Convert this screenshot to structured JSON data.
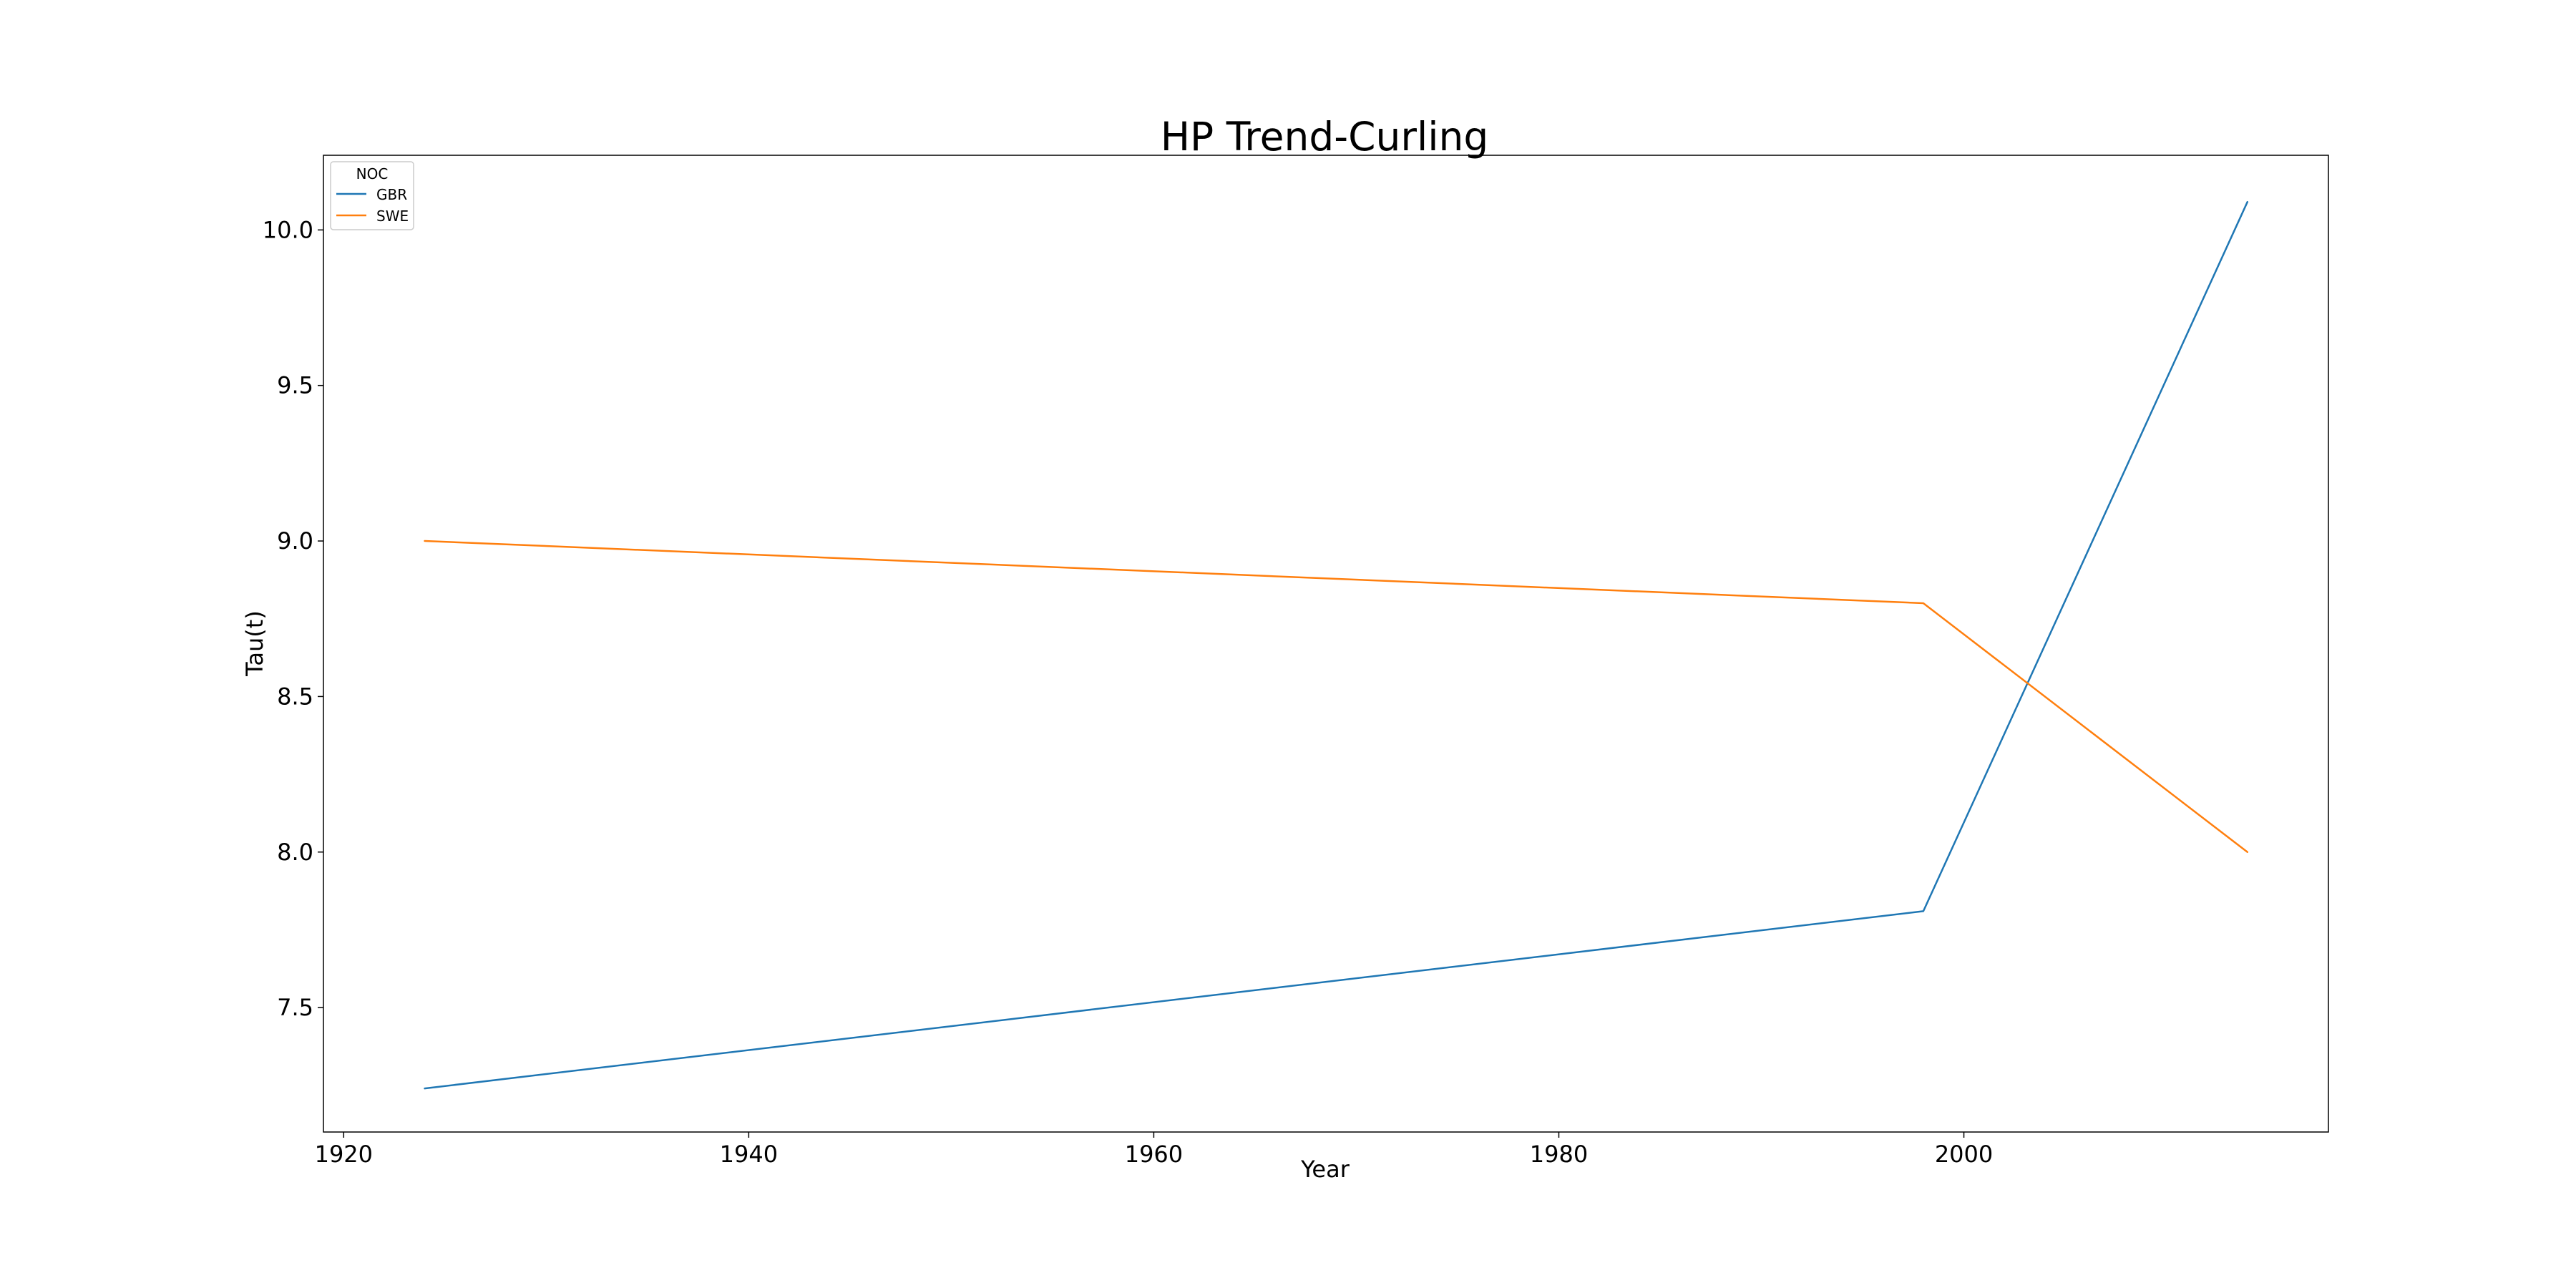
{
  "chart_data": {
    "type": "line",
    "title": "HP Trend-Curling",
    "xlabel": "Year",
    "ylabel": "Tau(t)",
    "xlim": [
      1919,
      2018
    ],
    "ylim": [
      7.1,
      10.24
    ],
    "xticks": [
      1920,
      1940,
      1960,
      1980,
      2000
    ],
    "yticks": [
      7.5,
      8.0,
      8.5,
      9.0,
      9.5,
      10.0
    ],
    "xtick_labels": [
      "1920",
      "1940",
      "1960",
      "1980",
      "2000"
    ],
    "ytick_labels": [
      "7.5",
      "8.0",
      "8.5",
      "9.0",
      "9.5",
      "10.0"
    ],
    "grid": false,
    "legend": {
      "title": "NOC",
      "position": "top-left"
    },
    "series": [
      {
        "name": "GBR",
        "color": "#1f77b4",
        "x": [
          1924,
          1998,
          2014
        ],
        "y": [
          7.24,
          7.81,
          10.09
        ]
      },
      {
        "name": "SWE",
        "color": "#ff7f0e",
        "x": [
          1924,
          1998,
          2014
        ],
        "y": [
          9.0,
          8.8,
          8.0
        ]
      }
    ]
  }
}
